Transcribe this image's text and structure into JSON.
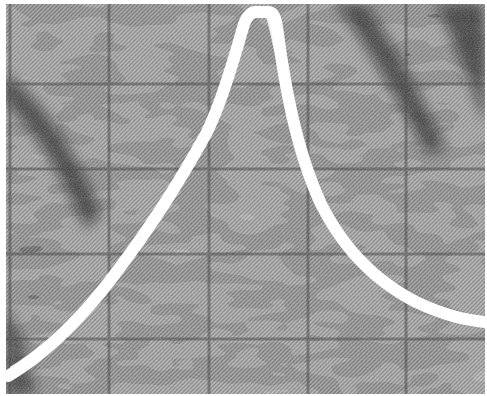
{
  "image": {
    "kind": "photograph",
    "subject": "oscilloscope-trace-peak",
    "colors": {
      "border": "#ffffff",
      "screen_dark": "#1e1e1e",
      "screen_mid": "#5a5a5a",
      "screen_light": "#b4b4b4",
      "trace": "#ffffff"
    }
  }
}
